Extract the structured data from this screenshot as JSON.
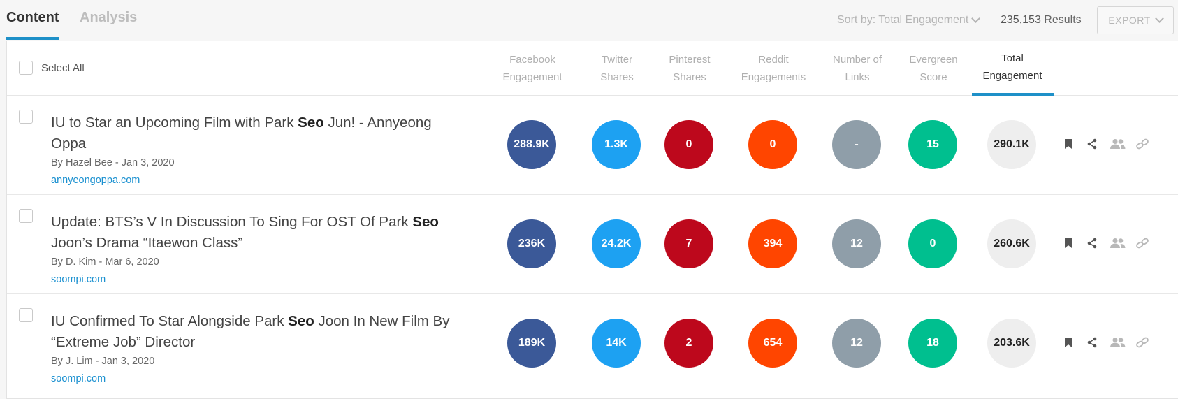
{
  "tabs": {
    "content": "Content",
    "analysis": "Analysis"
  },
  "toolbar": {
    "sort_label": "Sort by: Total Engagement",
    "results_count": "235,153",
    "results_label": "Results",
    "export_label": "EXPORT"
  },
  "table": {
    "select_all": "Select All",
    "columns": {
      "facebook": [
        "Facebook",
        "Engagement"
      ],
      "twitter": [
        "Twitter",
        "Shares"
      ],
      "pinterest": [
        "Pinterest",
        "Shares"
      ],
      "reddit": [
        "Reddit",
        "Engagements"
      ],
      "links": [
        "Number of",
        "Links"
      ],
      "evergreen": [
        "Evergreen",
        "Score"
      ],
      "total": [
        "Total",
        "Engagement"
      ]
    },
    "rows": [
      {
        "title_before": "IU to Star an Upcoming Film with Park ",
        "title_bold": "Seo",
        "title_after": " Jun! - Annyeong Oppa",
        "byline": "By Hazel Bee - Jan 3, 2020",
        "domain": "annyeongoppa.com",
        "facebook": "288.9K",
        "twitter": "1.3K",
        "pinterest": "0",
        "reddit": "0",
        "links": "-",
        "evergreen": "15",
        "total": "290.1K"
      },
      {
        "title_before": "Update: BTS’s V In Discussion To Sing For OST Of Park ",
        "title_bold": "Seo",
        "title_after": " Joon’s Drama “Itaewon Class”",
        "byline": "By D. Kim - Mar 6, 2020",
        "domain": "soompi.com",
        "facebook": "236K",
        "twitter": "24.2K",
        "pinterest": "7",
        "reddit": "394",
        "links": "12",
        "evergreen": "0",
        "total": "260.6K"
      },
      {
        "title_before": "IU Confirmed To Star Alongside Park ",
        "title_bold": "Seo",
        "title_after": " Joon In New Film By “Extreme Job” Director",
        "byline": "By J. Lim - Jan 3, 2020",
        "domain": "soompi.com",
        "facebook": "189K",
        "twitter": "14K",
        "pinterest": "2",
        "reddit": "654",
        "links": "12",
        "evergreen": "18",
        "total": "203.6K"
      }
    ]
  },
  "colors": {
    "accent": "#1e90c8",
    "facebook": "#3b5998",
    "twitter": "#1da1f2",
    "pinterest": "#bd081c",
    "reddit": "#ff4500",
    "links": "#8f9ea9",
    "evergreen": "#00bf8f",
    "total": "#eeeeee"
  },
  "icons": [
    "bookmark-icon",
    "share-icon",
    "users-icon",
    "link-icon"
  ]
}
